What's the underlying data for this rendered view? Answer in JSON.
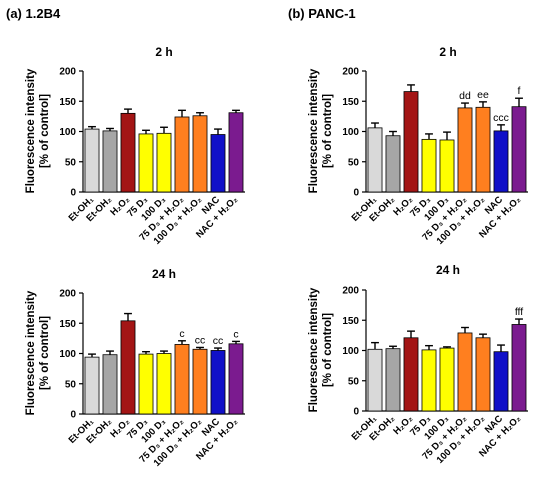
{
  "panels": {
    "a": {
      "label": "(a) 1.2B4"
    },
    "b": {
      "label": "(b) PANC-1"
    }
  },
  "common": {
    "ylabel_line1": "Fluorescence intensity",
    "ylabel_line2": "[% of control]",
    "yticks": [
      "0",
      "50",
      "100",
      "150",
      "200"
    ],
    "ylim": [
      0,
      200
    ],
    "categories": [
      "Et-OH₁",
      "Et-OH₂",
      "H₂O₂",
      "75 D₃",
      "100 D₃",
      "75 D₃ + H₂O₂",
      "100 D₃ + H₂O₂",
      "NAC",
      "NAC + H₂O₂"
    ],
    "colors": [
      "#d9d9d9",
      "#a6a6a6",
      "#a31515",
      "#ffff00",
      "#ffff00",
      "#ff7f1f",
      "#ff7f1f",
      "#1010c8",
      "#7b1b8f"
    ]
  },
  "chart_data": [
    {
      "type": "bar",
      "panel": "(a) 1.2B4",
      "title": "2 h",
      "ylabel": "Fluorescence intensity [% of control]",
      "ylim": [
        0,
        200
      ],
      "categories": [
        "Et-OH₁",
        "Et-OH₂",
        "H₂O₂",
        "75 D₃",
        "100 D₃",
        "75 D₃ + H₂O₂",
        "100 D₃ + H₂O₂",
        "NAC",
        "NAC + H₂O₂"
      ],
      "values": [
        104,
        101,
        130,
        96,
        97,
        124,
        126,
        95,
        131
      ],
      "errors": [
        4,
        4,
        7,
        6,
        10,
        11,
        5,
        9,
        4
      ],
      "annotations": [
        "",
        "",
        "",
        "",
        "",
        "",
        "",
        "",
        ""
      ]
    },
    {
      "type": "bar",
      "panel": "(b) PANC-1",
      "title": "2 h",
      "ylabel": "Fluorescence intensity [% of control]",
      "ylim": [
        0,
        200
      ],
      "categories": [
        "Et-OH₁",
        "Et-OH₂",
        "H₂O₂",
        "75 D₃",
        "100 D₃",
        "75 D₃ + H₂O₂",
        "100 D₃ + H₂O₂",
        "NAC",
        "NAC + H₂O₂"
      ],
      "values": [
        106,
        93,
        166,
        87,
        86,
        139,
        140,
        101,
        141
      ],
      "errors": [
        8,
        7,
        11,
        9,
        13,
        8,
        9,
        10,
        14
      ],
      "annotations": [
        "",
        "",
        "",
        "",
        "",
        "dd",
        "ee",
        "ccc",
        "f"
      ]
    },
    {
      "type": "bar",
      "panel": "(a) 1.2B4",
      "title": "24 h",
      "ylabel": "Fluorescence intensity [% of control]",
      "ylim": [
        0,
        200
      ],
      "categories": [
        "Et-OH₁",
        "Et-OH₂",
        "H₂O₂",
        "75 D₃",
        "100 D₃",
        "75 D₃ + H₂O₂",
        "100 D₃ + H₂O₂",
        "NAC",
        "NAC + H₂O₂"
      ],
      "values": [
        94,
        98,
        154,
        99,
        100,
        115,
        107,
        105,
        116
      ],
      "errors": [
        5,
        6,
        12,
        4,
        4,
        6,
        3,
        4,
        4
      ],
      "annotations": [
        "",
        "",
        "",
        "",
        "",
        "c",
        "cc",
        "cc",
        "c"
      ]
    },
    {
      "type": "bar",
      "panel": "(b) PANC-1",
      "title": "24 h",
      "ylabel": "Fluorescence intensity [% of control]",
      "ylim": [
        0,
        200
      ],
      "categories": [
        "Et-OH₁",
        "Et-OH₂",
        "H₂O₂",
        "75 D₃",
        "100 D₃",
        "75 D₃ + H₂O₂",
        "100 D₃ + H₂O₂",
        "NAC",
        "NAC + H₂O₂"
      ],
      "values": [
        102,
        103,
        121,
        101,
        104,
        129,
        121,
        98,
        143
      ],
      "errors": [
        11,
        4,
        11,
        7,
        2,
        9,
        6,
        11,
        9
      ],
      "annotations": [
        "",
        "",
        "",
        "",
        "",
        "",
        "",
        "",
        "fff"
      ]
    }
  ]
}
